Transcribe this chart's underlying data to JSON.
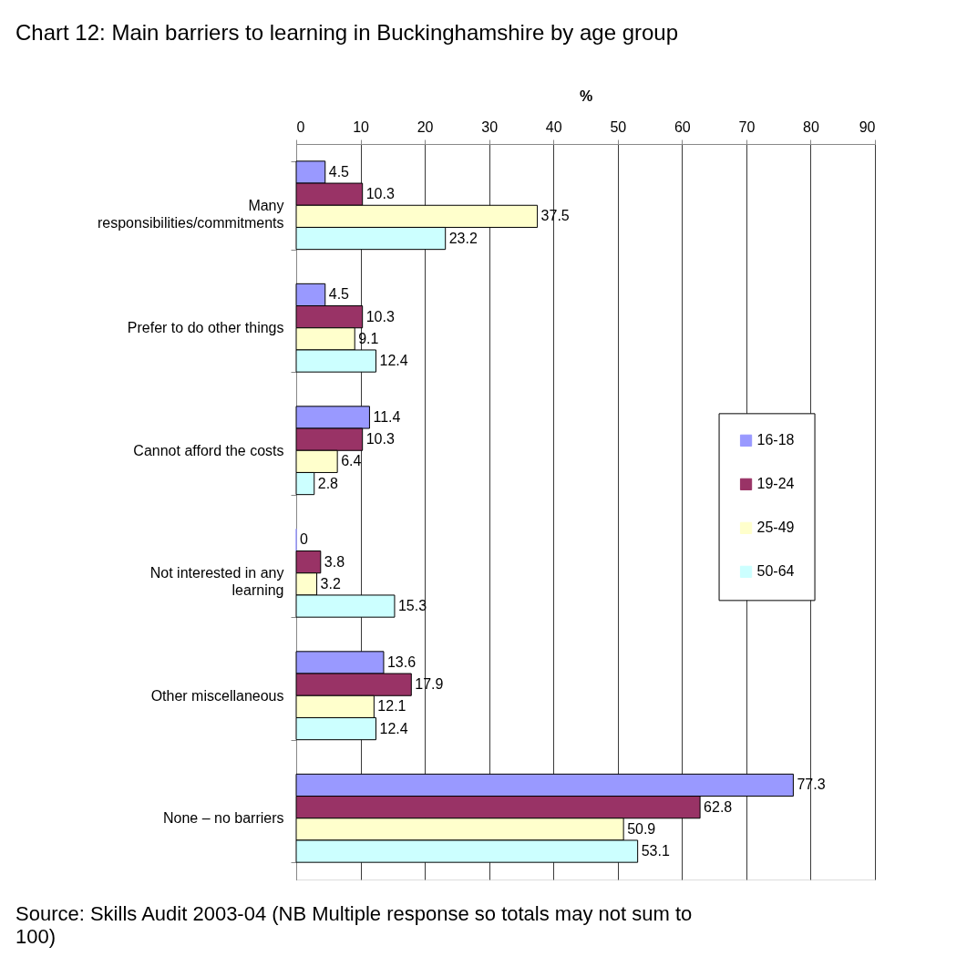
{
  "chart_data": {
    "type": "bar",
    "orientation": "horizontal",
    "title": "Chart 12: Main barriers to learning in Buckinghamshire by age group",
    "xlabel": "%",
    "categories": [
      "Many responsibilities/commitments",
      "Prefer to do other things",
      "Cannot afford the costs",
      "Not interested in any learning",
      "Other miscellaneous",
      "None – no barriers"
    ],
    "series": [
      {
        "name": "16-18",
        "color": "#9999ff",
        "values": [
          4.5,
          4.5,
          11.4,
          0,
          13.6,
          77.3
        ]
      },
      {
        "name": "19-24",
        "color": "#993366",
        "values": [
          10.3,
          10.3,
          10.3,
          3.8,
          17.9,
          62.8
        ]
      },
      {
        "name": "25-49",
        "color": "#ffffcc",
        "values": [
          37.5,
          9.1,
          6.4,
          3.2,
          12.1,
          50.9
        ]
      },
      {
        "name": "50-64",
        "color": "#ccffff",
        "values": [
          23.2,
          12.4,
          2.8,
          15.3,
          12.4,
          53.1
        ]
      }
    ],
    "xlim": [
      0,
      90
    ],
    "xticks": [
      0,
      10,
      20,
      30,
      40,
      50,
      60,
      70,
      80,
      90
    ],
    "grid": "x",
    "legend": "right",
    "data_labels": true,
    "annotations": [
      "Source: Skills Audit 2003-04 (NB Multiple response so totals may not sum to 100)"
    ]
  }
}
